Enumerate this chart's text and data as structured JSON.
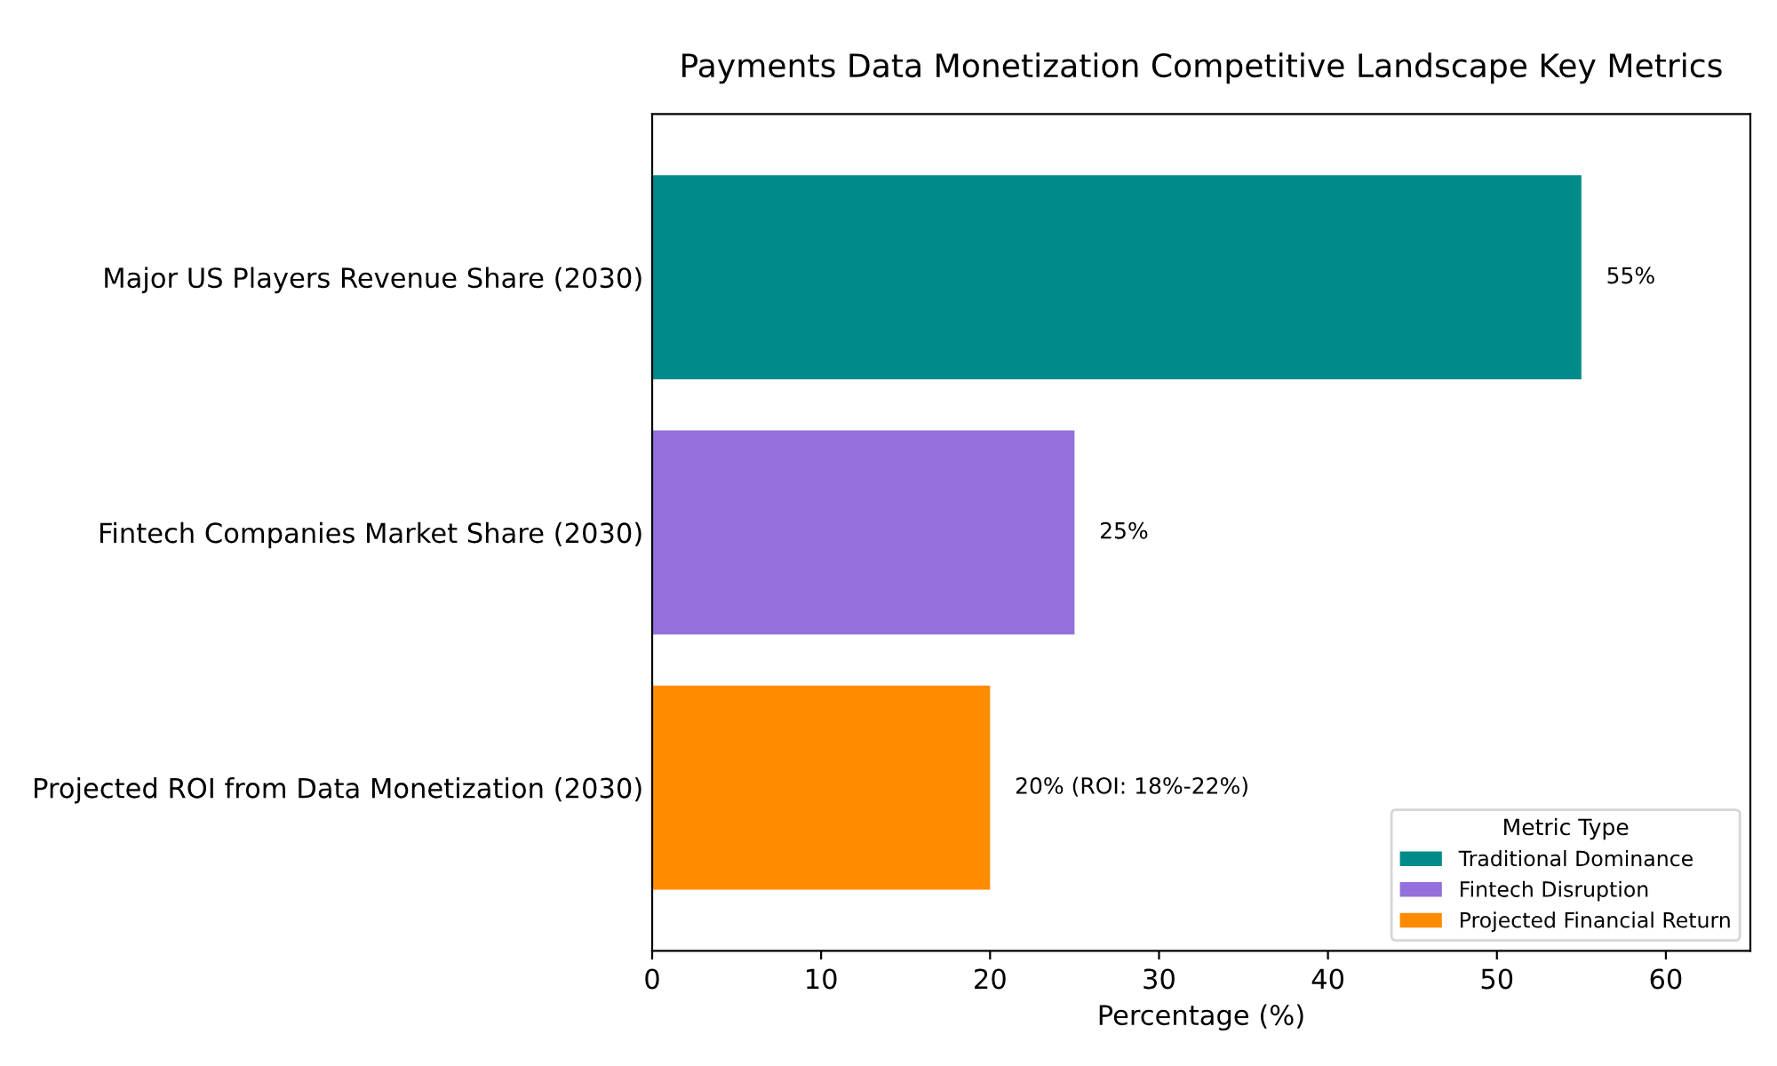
{
  "chart_data": {
    "type": "bar",
    "orientation": "horizontal",
    "title": "Payments Data Monetization Competitive Landscape Key Metrics",
    "xlabel": "Percentage (%)",
    "categories": [
      "Major US Players Revenue Share (2030)",
      "Fintech Companies Market Share (2030)",
      "Projected ROI from Data Monetization (2030)"
    ],
    "series": [
      {
        "name": "Traditional Dominance",
        "color": "#008b8b",
        "values": [
          55,
          null,
          null
        ],
        "value_labels": [
          "55%",
          null,
          null
        ]
      },
      {
        "name": "Fintech Disruption",
        "color": "#9370db",
        "values": [
          null,
          25,
          null
        ],
        "value_labels": [
          null,
          "25%",
          null
        ]
      },
      {
        "name": "Projected Financial Return",
        "color": "#ff8c00",
        "values": [
          null,
          null,
          20
        ],
        "value_labels": [
          null,
          null,
          "20% (ROI: 18%-22%)"
        ]
      }
    ],
    "legend_title": "Metric Type",
    "legend": "bottom right",
    "grid": false,
    "xlim": [
      0,
      65
    ],
    "xticks": [
      0,
      10,
      20,
      30,
      40,
      50,
      60
    ]
  }
}
